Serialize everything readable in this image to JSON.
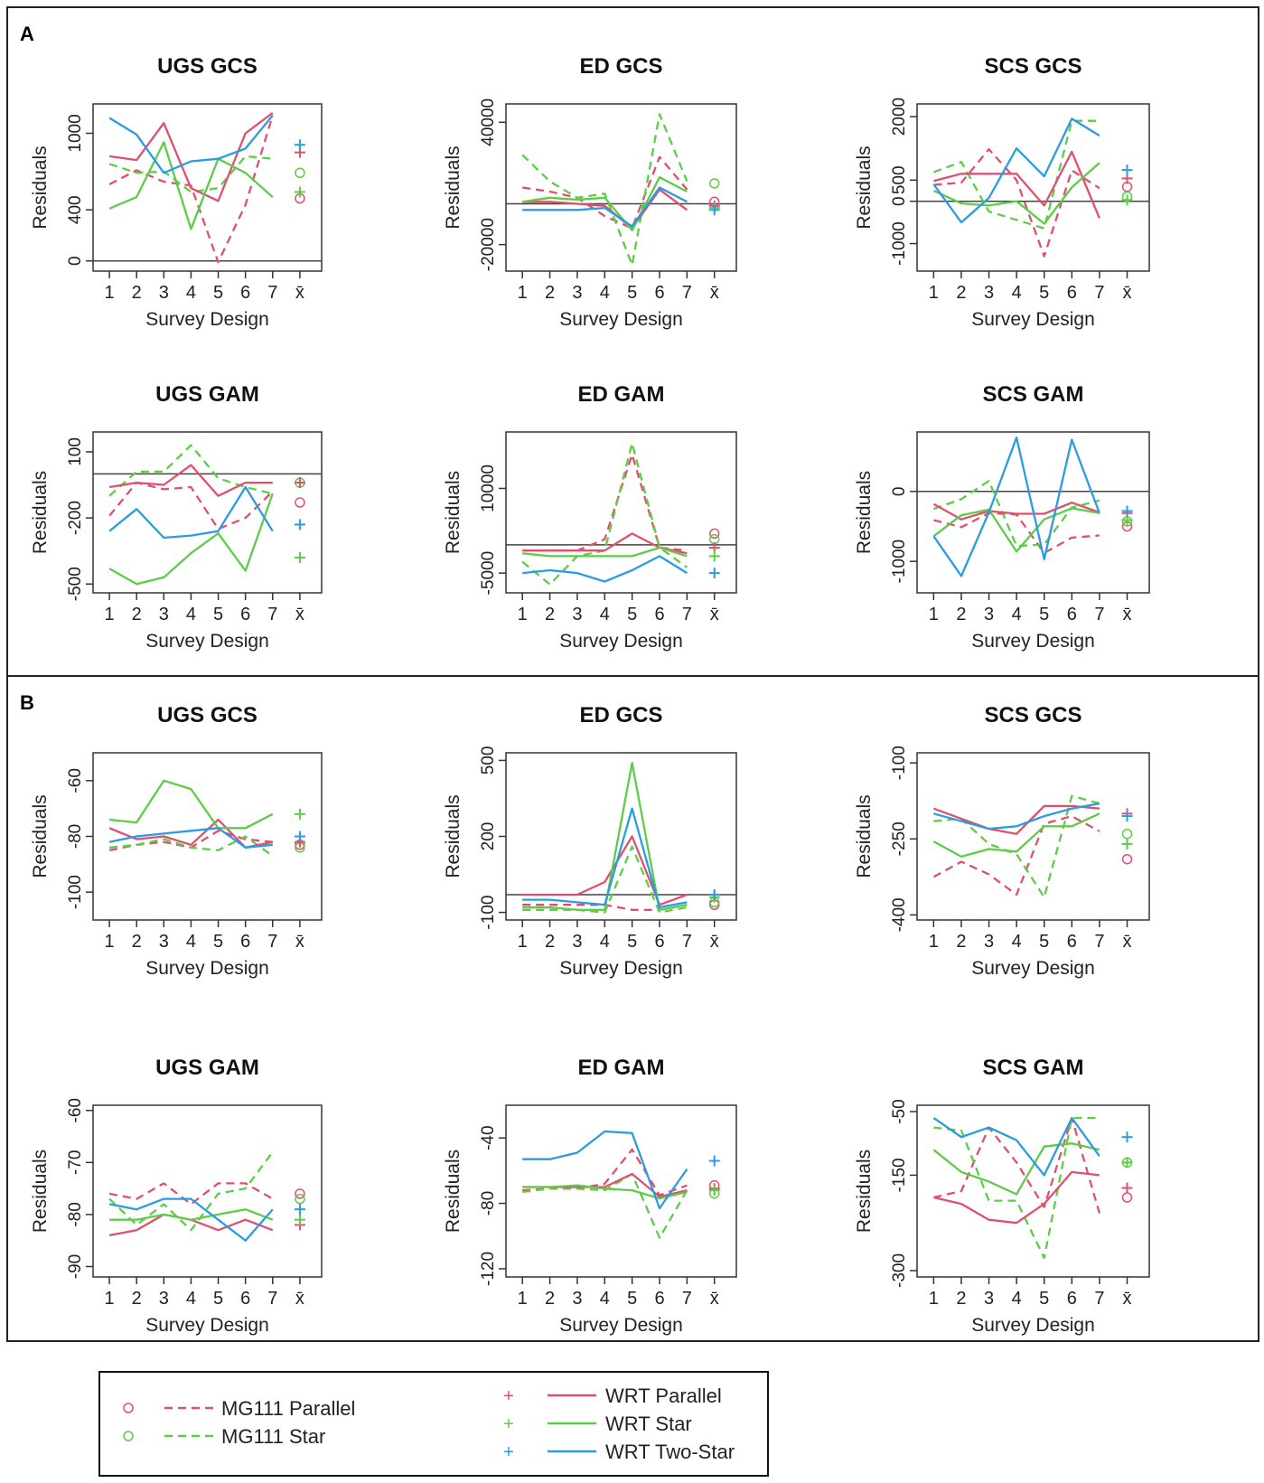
{
  "figure": {
    "x_tick_labels": [
      "1",
      "2",
      "3",
      "4",
      "5",
      "6",
      "7",
      "x̄"
    ],
    "xlabel": "Survey Design",
    "ylabel": "Residuals",
    "colors": {
      "MG111 Parallel": "#e0506e",
      "MG111 Star": "#5dcc47",
      "WRT Parallel": "#e0506e",
      "WRT Star": "#5dcc47",
      "WRT Two-Star": "#2b9be3"
    }
  },
  "panels": [
    {
      "label": "A",
      "charts": [
        0,
        1,
        2,
        3,
        4,
        5
      ]
    },
    {
      "label": "B",
      "charts": [
        6,
        7,
        8,
        9,
        10,
        11
      ]
    }
  ],
  "legend": {
    "entries": [
      {
        "label": "MG111 Parallel",
        "dash": true,
        "marker": "o",
        "color": "#e0506e"
      },
      {
        "label": "MG111 Star",
        "dash": true,
        "marker": "o",
        "color": "#5dcc47"
      },
      {
        "label": "WRT Parallel",
        "dash": false,
        "marker": "+",
        "color": "#e0506e"
      },
      {
        "label": "WRT Star",
        "dash": false,
        "marker": "+",
        "color": "#5dcc47"
      },
      {
        "label": "WRT Two-Star",
        "dash": false,
        "marker": "+",
        "color": "#2b9be3"
      }
    ]
  },
  "chart_data": [
    {
      "type": "line",
      "title": "UGS GCS",
      "xlabel": "Survey Design",
      "ylabel": "Residuals",
      "ylim": [
        -80,
        1230
      ],
      "yticks": [
        0,
        400,
        1000
      ],
      "hline": 0,
      "series": [
        {
          "name": "MG111 Parallel",
          "values": [
            600,
            710,
            620,
            590,
            -10,
            440,
            1140
          ],
          "mean": 490
        },
        {
          "name": "MG111 Star",
          "values": [
            760,
            690,
            700,
            540,
            570,
            820,
            800
          ],
          "mean": 690
        },
        {
          "name": "WRT Parallel",
          "values": [
            820,
            790,
            1080,
            570,
            470,
            1000,
            1160
          ],
          "mean": 850
        },
        {
          "name": "WRT Star",
          "values": [
            410,
            500,
            930,
            250,
            800,
            690,
            500
          ],
          "mean": 540
        },
        {
          "name": "WRT Two-Star",
          "values": [
            1120,
            990,
            690,
            780,
            800,
            880,
            1140
          ],
          "mean": 910
        }
      ]
    },
    {
      "type": "line",
      "title": "ED GCS",
      "xlabel": "Survey Design",
      "ylabel": "Residuals",
      "ylim": [
        -33000,
        49000
      ],
      "yticks": [
        -20000,
        40000
      ],
      "hline": 0,
      "series": [
        {
          "name": "MG111 Parallel",
          "values": [
            8000,
            6000,
            3000,
            -6000,
            -12000,
            23000,
            7000
          ],
          "mean": 1000
        },
        {
          "name": "MG111 Star",
          "values": [
            24000,
            11000,
            3000,
            5000,
            -30000,
            44000,
            11000
          ],
          "mean": 10000
        },
        {
          "name": "WRT Parallel",
          "values": [
            1000,
            1000,
            0,
            -1000,
            -12000,
            7000,
            -3000
          ],
          "mean": -1000
        },
        {
          "name": "WRT Star",
          "values": [
            1000,
            3000,
            2000,
            3000,
            -13000,
            13000,
            6000
          ],
          "mean": -2000
        },
        {
          "name": "WRT Two-Star",
          "values": [
            -3000,
            -3000,
            -3000,
            -2000,
            -11000,
            8000,
            1000
          ],
          "mean": -3000
        }
      ]
    },
    {
      "type": "line",
      "title": "SCS GCS",
      "xlabel": "Survey Design",
      "ylabel": "Residuals",
      "ylim": [
        -1650,
        2300
      ],
      "yticks": [
        -1000,
        0,
        500,
        2000
      ],
      "hline": 0,
      "series": [
        {
          "name": "MG111 Parallel",
          "values": [
            390,
            440,
            1230,
            500,
            -1300,
            730,
            310
          ],
          "mean": 340
        },
        {
          "name": "MG111 Star",
          "values": [
            690,
            930,
            -240,
            -440,
            -640,
            1900,
            1900
          ],
          "mean": 110
        },
        {
          "name": "WRT Parallel",
          "values": [
            480,
            650,
            650,
            650,
            -100,
            1170,
            -400
          ],
          "mean": 540
        },
        {
          "name": "WRT Star",
          "values": [
            250,
            -50,
            -100,
            0,
            -530,
            330,
            910
          ],
          "mean": 30
        },
        {
          "name": "WRT Two-Star",
          "values": [
            400,
            -500,
            80,
            1250,
            590,
            1950,
            1550
          ],
          "mean": 740
        }
      ]
    },
    {
      "type": "line",
      "title": "UGS GAM",
      "xlabel": "Survey Design",
      "ylabel": "Residuals",
      "ylim": [
        -540,
        190
      ],
      "yticks": [
        -500,
        -200,
        100
      ],
      "hline": 0,
      "series": [
        {
          "name": "MG111 Parallel",
          "values": [
            -190,
            -40,
            -70,
            -60,
            -250,
            -200,
            -80
          ],
          "mean": -130
        },
        {
          "name": "MG111 Star",
          "values": [
            -100,
            10,
            10,
            130,
            -20,
            -60,
            -90
          ],
          "mean": -40
        },
        {
          "name": "WRT Parallel",
          "values": [
            -60,
            -40,
            -50,
            40,
            -100,
            -40,
            -40
          ],
          "mean": -40
        },
        {
          "name": "WRT Star",
          "values": [
            -430,
            -500,
            -470,
            -360,
            -270,
            -440,
            -90
          ],
          "mean": -380
        },
        {
          "name": "WRT Two-Star",
          "values": [
            -260,
            -160,
            -290,
            -280,
            -260,
            -60,
            -260
          ],
          "mean": -230
        }
      ]
    },
    {
      "type": "line",
      "title": "ED GAM",
      "xlabel": "Survey Design",
      "ylabel": "Residuals",
      "ylim": [
        -8500,
        20000
      ],
      "yticks": [
        -5000,
        10000
      ],
      "hline": 0,
      "series": [
        {
          "name": "MG111 Parallel",
          "values": [
            -1000,
            -1000,
            -1000,
            1000,
            16000,
            -500,
            -1000
          ],
          "mean": 2000
        },
        {
          "name": "MG111 Star",
          "values": [
            -3000,
            -7000,
            -2000,
            -1000,
            18000,
            -500,
            -4000
          ],
          "mean": 1000
        },
        {
          "name": "WRT Parallel",
          "values": [
            -1000,
            -1000,
            -1000,
            -1000,
            2000,
            -500,
            -1500
          ],
          "mean": -500
        },
        {
          "name": "WRT Star",
          "values": [
            -1500,
            -2000,
            -2000,
            -2000,
            -2000,
            -500,
            -2000
          ],
          "mean": -2000
        },
        {
          "name": "WRT Two-Star",
          "values": [
            -5000,
            -4500,
            -5000,
            -6500,
            -4500,
            -2000,
            -5000
          ],
          "mean": -5000
        }
      ]
    },
    {
      "type": "line",
      "title": "SCS GAM",
      "xlabel": "Survey Design",
      "ylabel": "Residuals",
      "ylim": [
        -1450,
        850
      ],
      "yticks": [
        -1000,
        0
      ],
      "hline": 0,
      "series": [
        {
          "name": "MG111 Parallel",
          "values": [
            -410,
            -510,
            -310,
            -330,
            -880,
            -660,
            -630
          ],
          "mean": -500
        },
        {
          "name": "MG111 Star",
          "values": [
            -250,
            -110,
            150,
            -780,
            -760,
            -230,
            -130
          ],
          "mean": -430
        },
        {
          "name": "WRT Parallel",
          "values": [
            -180,
            -400,
            -280,
            -320,
            -320,
            -160,
            -300
          ],
          "mean": -310
        },
        {
          "name": "WRT Star",
          "values": [
            -640,
            -340,
            -260,
            -860,
            -400,
            -240,
            -310
          ],
          "mean": -410
        },
        {
          "name": "WRT Two-Star",
          "values": [
            -640,
            -1210,
            -300,
            770,
            -970,
            740,
            -310
          ],
          "mean": -280
        }
      ]
    },
    {
      "type": "line",
      "title": "UGS GCS",
      "xlabel": "Survey Design",
      "ylabel": "Residuals",
      "ylim": [
        -110,
        -50
      ],
      "yticks": [
        -100,
        -80,
        -60
      ],
      "hline": null,
      "series": [
        {
          "name": "MG111 Parallel",
          "values": [
            -85,
            -83,
            -82,
            -84,
            -78,
            -81,
            -82
          ],
          "mean": -83
        },
        {
          "name": "MG111 Star",
          "values": [
            -84,
            -83,
            -81,
            -84,
            -85,
            -80,
            -87
          ],
          "mean": -84
        },
        {
          "name": "WRT Parallel",
          "values": [
            -77,
            -81,
            -80,
            -83,
            -74,
            -84,
            -82
          ],
          "mean": -82
        },
        {
          "name": "WRT Star",
          "values": [
            -74,
            -75,
            -60,
            -63,
            -77,
            -77,
            -72
          ],
          "mean": -72
        },
        {
          "name": "WRT Two-Star",
          "values": [
            -82,
            -80,
            -79,
            -78,
            -77,
            -84,
            -83
          ],
          "mean": -80
        }
      ]
    },
    {
      "type": "line",
      "title": "ED GCS",
      "xlabel": "Survey Design",
      "ylabel": "Residuals",
      "ylim": [
        -130,
        530
      ],
      "yticks": [
        -100,
        200,
        500
      ],
      "hline": -30,
      "series": [
        {
          "name": "MG111 Parallel",
          "values": [
            -70,
            -70,
            -70,
            -70,
            -90,
            -90,
            -70
          ],
          "mean": -70
        },
        {
          "name": "MG111 Star",
          "values": [
            -90,
            -90,
            -90,
            -100,
            160,
            -100,
            -80
          ],
          "mean": -60
        },
        {
          "name": "WRT Parallel",
          "values": [
            -30,
            -30,
            -30,
            20,
            200,
            -70,
            -30
          ],
          "mean": -30
        },
        {
          "name": "WRT Star",
          "values": [
            -80,
            -80,
            -90,
            -90,
            490,
            -90,
            -70
          ],
          "mean": -40
        },
        {
          "name": "WRT Two-Star",
          "values": [
            -50,
            -50,
            -60,
            -70,
            310,
            -80,
            -60
          ],
          "mean": -30
        }
      ]
    },
    {
      "type": "line",
      "title": "SCS GCS",
      "xlabel": "Survey Design",
      "ylabel": "Residuals",
      "ylim": [
        -410,
        -80
      ],
      "yticks": [
        -400,
        -250,
        -100
      ],
      "hline": null,
      "series": [
        {
          "name": "MG111 Parallel",
          "values": [
            -325,
            -295,
            -320,
            -360,
            -220,
            -205,
            -235
          ],
          "mean": -290
        },
        {
          "name": "MG111 Star",
          "values": [
            -215,
            -210,
            -260,
            -280,
            -365,
            -165,
            -180
          ],
          "mean": -240
        },
        {
          "name": "WRT Parallel",
          "values": [
            -190,
            -210,
            -230,
            -240,
            -185,
            -185,
            -190
          ],
          "mean": -200
        },
        {
          "name": "WRT Star",
          "values": [
            -255,
            -285,
            -270,
            -275,
            -225,
            -225,
            -200
          ],
          "mean": -260
        },
        {
          "name": "WRT Two-Star",
          "values": [
            -200,
            -215,
            -230,
            -225,
            -205,
            -190,
            -180
          ],
          "mean": -205
        }
      ]
    },
    {
      "type": "line",
      "title": "UGS GAM",
      "xlabel": "Survey Design",
      "ylabel": "Residuals",
      "ylim": [
        -92,
        -59
      ],
      "yticks": [
        -90,
        -80,
        -70,
        -60
      ],
      "hline": null,
      "series": [
        {
          "name": "MG111 Parallel",
          "values": [
            -76,
            -77,
            -74,
            -78,
            -74,
            -74,
            -77
          ],
          "mean": -76
        },
        {
          "name": "MG111 Star",
          "values": [
            -77,
            -82,
            -78,
            -83,
            -76,
            -75,
            -68
          ],
          "mean": -77
        },
        {
          "name": "WRT Parallel",
          "values": [
            -84,
            -83,
            -80,
            -81,
            -83,
            -81,
            -83
          ],
          "mean": -82
        },
        {
          "name": "WRT Star",
          "values": [
            -81,
            -81,
            -80,
            -81,
            -80,
            -79,
            -81
          ],
          "mean": -81
        },
        {
          "name": "WRT Two-Star",
          "values": [
            -78,
            -79,
            -77,
            -77,
            -81,
            -85,
            -79
          ],
          "mean": -79
        }
      ]
    },
    {
      "type": "line",
      "title": "ED GAM",
      "xlabel": "Survey Design",
      "ylabel": "Residuals",
      "ylim": [
        -125,
        -20
      ],
      "yticks": [
        -120,
        -80,
        -40
      ],
      "hline": null,
      "series": [
        {
          "name": "MG111 Parallel",
          "values": [
            -72,
            -71,
            -71,
            -68,
            -47,
            -75,
            -69
          ],
          "mean": -69
        },
        {
          "name": "MG111 Star",
          "values": [
            -73,
            -71,
            -71,
            -72,
            -62,
            -101,
            -72
          ],
          "mean": -74
        },
        {
          "name": "WRT Parallel",
          "values": [
            -70,
            -70,
            -70,
            -70,
            -62,
            -76,
            -72
          ],
          "mean": -71
        },
        {
          "name": "WRT Star",
          "values": [
            -70,
            -70,
            -69,
            -71,
            -72,
            -77,
            -73
          ],
          "mean": -72
        },
        {
          "name": "WRT Two-Star",
          "values": [
            -53,
            -53,
            -49,
            -36,
            -37,
            -83,
            -59
          ],
          "mean": -54
        }
      ]
    },
    {
      "type": "line",
      "title": "SCS GAM",
      "xlabel": "Survey Design",
      "ylabel": "Residuals",
      "ylim": [
        -310,
        -40
      ],
      "yticks": [
        -300,
        -150,
        -50
      ],
      "hline": null,
      "series": [
        {
          "name": "MG111 Parallel",
          "values": [
            -185,
            -175,
            -75,
            -130,
            -200,
            -60,
            -210
          ],
          "mean": -185
        },
        {
          "name": "MG111 Star",
          "values": [
            -75,
            -80,
            -190,
            -190,
            -280,
            -60,
            -60
          ],
          "mean": -130
        },
        {
          "name": "WRT Parallel",
          "values": [
            -185,
            -195,
            -220,
            -225,
            -195,
            -145,
            -150
          ],
          "mean": -170
        },
        {
          "name": "WRT Star",
          "values": [
            -110,
            -145,
            -160,
            -180,
            -105,
            -100,
            -110
          ],
          "mean": -130
        },
        {
          "name": "WRT Two-Star",
          "values": [
            -60,
            -90,
            -75,
            -95,
            -150,
            -60,
            -120
          ],
          "mean": -90
        }
      ]
    }
  ]
}
